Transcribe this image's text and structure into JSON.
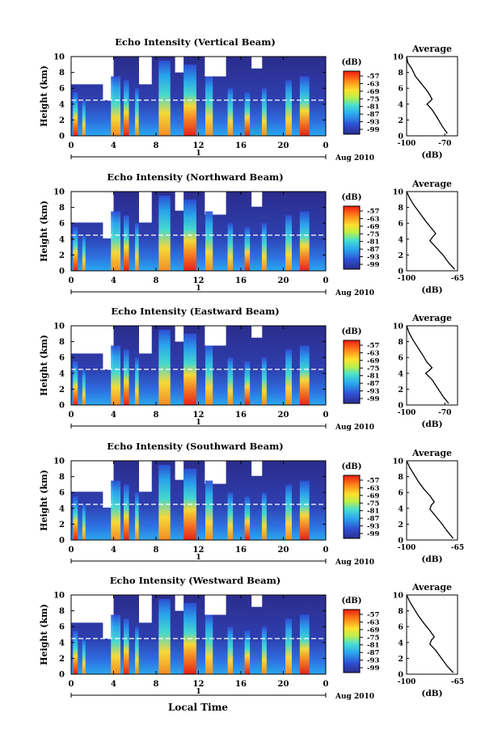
{
  "figure": {
    "x_axis_title": "Local Time",
    "date_label": "Aug 2010",
    "date_bar_label": "1",
    "profile_xlabel": "(dB)"
  },
  "chart_data": [
    {
      "type": "heatmap",
      "title": "Echo Intensity (Vertical Beam)",
      "xlabel": "",
      "ylabel": "Height (km)",
      "x_ticks": [
        "0",
        "4",
        "8",
        "12",
        "16",
        "20",
        "0"
      ],
      "y_ticks": [
        "0",
        "2",
        "4",
        "6",
        "8",
        "10"
      ],
      "xlim": [
        0,
        24
      ],
      "ylim": [
        0,
        10
      ],
      "colorbar": {
        "title": "(dB)",
        "ticks": [
          "-57",
          "-63",
          "-69",
          "-75",
          "-81",
          "-87",
          "-93",
          "-99"
        ]
      },
      "profile": {
        "title": "Average",
        "xlabel": "(dB)",
        "x_ticks": [
          "-100",
          "-70"
        ],
        "xlim": [
          -100,
          -60
        ],
        "points": [
          [
            -100,
            10
          ],
          [
            -99,
            9.2
          ],
          [
            -96,
            8.5
          ],
          [
            -93,
            7.5
          ],
          [
            -88,
            6.5
          ],
          [
            -84,
            5.7
          ],
          [
            -82,
            5.2
          ],
          [
            -80,
            4.6
          ],
          [
            -82,
            4.3
          ],
          [
            -84,
            4.0
          ],
          [
            -80,
            3.3
          ],
          [
            -76,
            2.3
          ],
          [
            -72,
            1.2
          ],
          [
            -68,
            0.3
          ]
        ]
      }
    },
    {
      "type": "heatmap",
      "title": "Echo Intensity (Northward Beam)",
      "xlabel": "",
      "ylabel": "Height (km)",
      "x_ticks": [
        "0",
        "4",
        "8",
        "12",
        "16",
        "20",
        "0"
      ],
      "y_ticks": [
        "0",
        "2",
        "4",
        "6",
        "8",
        "10"
      ],
      "xlim": [
        0,
        24
      ],
      "ylim": [
        0,
        10
      ],
      "colorbar": {
        "title": "(dB)",
        "ticks": [
          "-57",
          "-63",
          "-69",
          "-75",
          "-81",
          "-87",
          "-93",
          "-99"
        ]
      },
      "profile": {
        "title": "Average",
        "xlabel": "(dB)",
        "x_ticks": [
          "-100",
          "-65"
        ],
        "xlim": [
          -100,
          -65
        ],
        "points": [
          [
            -100,
            10
          ],
          [
            -98,
            9.2
          ],
          [
            -95,
            8.3
          ],
          [
            -91,
            7.3
          ],
          [
            -87,
            6.3
          ],
          [
            -83,
            5.4
          ],
          [
            -80,
            4.7
          ],
          [
            -82,
            4.3
          ],
          [
            -84,
            3.8
          ],
          [
            -80,
            3.0
          ],
          [
            -75,
            2.0
          ],
          [
            -71,
            1.0
          ],
          [
            -67,
            0.2
          ]
        ]
      }
    },
    {
      "type": "heatmap",
      "title": "Echo Intensity (Eastward Beam)",
      "xlabel": "",
      "ylabel": "Height (km)",
      "x_ticks": [
        "0",
        "4",
        "8",
        "12",
        "16",
        "20",
        "0"
      ],
      "y_ticks": [
        "0",
        "2",
        "4",
        "6",
        "8",
        "10"
      ],
      "xlim": [
        0,
        24
      ],
      "ylim": [
        0,
        10
      ],
      "colorbar": {
        "title": "(dB)",
        "ticks": [
          "-57",
          "-63",
          "-69",
          "-75",
          "-81",
          "-87",
          "-93",
          "-99"
        ]
      },
      "profile": {
        "title": "Average",
        "xlabel": "(dB)",
        "x_ticks": [
          "-100",
          "-70"
        ],
        "xlim": [
          -100,
          -60
        ],
        "points": [
          [
            -100,
            10
          ],
          [
            -98,
            9.1
          ],
          [
            -95,
            8.2
          ],
          [
            -91,
            7.2
          ],
          [
            -87,
            6.2
          ],
          [
            -84,
            5.4
          ],
          [
            -80,
            4.7
          ],
          [
            -82,
            4.4
          ],
          [
            -85,
            4.0
          ],
          [
            -80,
            3.2
          ],
          [
            -76,
            2.2
          ],
          [
            -71,
            1.0
          ],
          [
            -67,
            0.2
          ]
        ]
      }
    },
    {
      "type": "heatmap",
      "title": "Echo Intensity (Southward Beam)",
      "xlabel": "",
      "ylabel": "Height (km)",
      "x_ticks": [
        "0",
        "4",
        "8",
        "12",
        "16",
        "20",
        "0"
      ],
      "y_ticks": [
        "0",
        "2",
        "4",
        "6",
        "8",
        "10"
      ],
      "xlim": [
        0,
        24
      ],
      "ylim": [
        0,
        10
      ],
      "colorbar": {
        "title": "(dB)",
        "ticks": [
          "-57",
          "-63",
          "-69",
          "-75",
          "-81",
          "-87",
          "-93",
          "-99"
        ]
      },
      "profile": {
        "title": "Average",
        "xlabel": "(dB)",
        "x_ticks": [
          "-100",
          "-65"
        ],
        "xlim": [
          -100,
          -65
        ],
        "points": [
          [
            -100,
            10
          ],
          [
            -98,
            9.2
          ],
          [
            -95,
            8.3
          ],
          [
            -92,
            7.4
          ],
          [
            -88,
            6.4
          ],
          [
            -84,
            5.6
          ],
          [
            -81,
            4.8
          ],
          [
            -83,
            4.4
          ],
          [
            -84,
            3.9
          ],
          [
            -80,
            3.0
          ],
          [
            -76,
            2.1
          ],
          [
            -72,
            1.1
          ],
          [
            -68,
            0.2
          ]
        ]
      }
    },
    {
      "type": "heatmap",
      "title": "Echo Intensity (Westward Beam)",
      "xlabel": "Local Time",
      "ylabel": "Height (km)",
      "x_ticks": [
        "0",
        "4",
        "8",
        "12",
        "16",
        "20",
        "0"
      ],
      "y_ticks": [
        "0",
        "2",
        "4",
        "6",
        "8",
        "10"
      ],
      "xlim": [
        0,
        24
      ],
      "ylim": [
        0,
        10
      ],
      "colorbar": {
        "title": "(dB)",
        "ticks": [
          "-57",
          "-63",
          "-69",
          "-75",
          "-81",
          "-87",
          "-93",
          "-99"
        ]
      },
      "profile": {
        "title": "Average",
        "xlabel": "(dB)",
        "x_ticks": [
          "-100",
          "-65"
        ],
        "xlim": [
          -100,
          -65
        ],
        "points": [
          [
            -100,
            10
          ],
          [
            -98,
            9.2
          ],
          [
            -95,
            8.3
          ],
          [
            -92,
            7.4
          ],
          [
            -88,
            6.4
          ],
          [
            -84,
            5.5
          ],
          [
            -81,
            4.7
          ],
          [
            -83,
            4.3
          ],
          [
            -84,
            3.8
          ],
          [
            -80,
            3.0
          ],
          [
            -76,
            2.0
          ],
          [
            -72,
            1.0
          ],
          [
            -68,
            0.2
          ]
        ]
      }
    }
  ]
}
